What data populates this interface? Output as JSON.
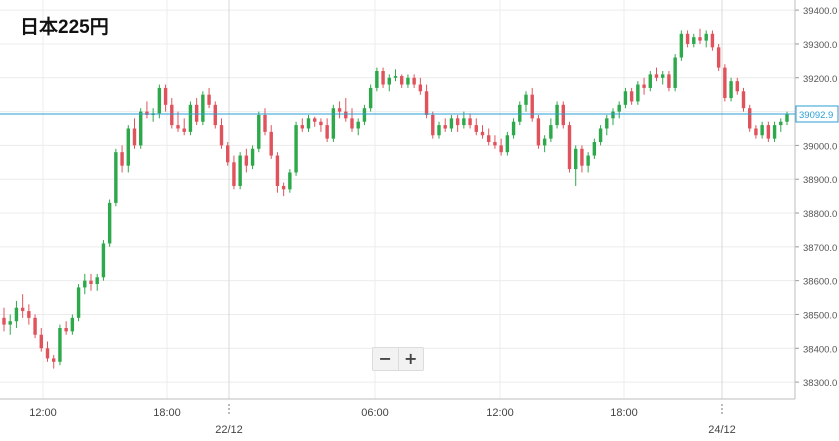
{
  "title": "日本225円",
  "zoom": {
    "minus": "−",
    "plus": "+"
  },
  "colors": {
    "up": "#2da84a",
    "down": "#e0535c",
    "price_line": "#2a9fd6",
    "grid": "#ececec"
  },
  "chart_data": {
    "type": "candlestick",
    "title": "日本225円",
    "ylim": [
      38250,
      39430
    ],
    "y_ticks": [
      "39400.0",
      "39300.0",
      "39200.0",
      "39100.0",
      "39000.0",
      "38900.0",
      "38800.0",
      "38700.0",
      "38600.0",
      "38500.0",
      "38400.0",
      "38300.0"
    ],
    "x_ticks": [
      "12:00",
      "18:00",
      "06:00",
      "12:00",
      "18:00"
    ],
    "date_labels": [
      "22/12",
      "24/12"
    ],
    "current_price": "39092.9",
    "candles": [
      [
        38490,
        38520,
        38450,
        38470
      ],
      [
        38470,
        38500,
        38440,
        38480
      ],
      [
        38480,
        38540,
        38460,
        38520
      ],
      [
        38520,
        38560,
        38490,
        38510
      ],
      [
        38510,
        38530,
        38470,
        38490
      ],
      [
        38490,
        38500,
        38430,
        38440
      ],
      [
        38440,
        38460,
        38390,
        38400
      ],
      [
        38400,
        38420,
        38360,
        38370
      ],
      [
        38370,
        38380,
        38340,
        38360
      ],
      [
        38360,
        38470,
        38350,
        38460
      ],
      [
        38460,
        38480,
        38440,
        38450
      ],
      [
        38450,
        38500,
        38440,
        38490
      ],
      [
        38490,
        38590,
        38480,
        38580
      ],
      [
        38580,
        38620,
        38560,
        38600
      ],
      [
        38600,
        38620,
        38570,
        38590
      ],
      [
        38590,
        38620,
        38570,
        38610
      ],
      [
        38610,
        38720,
        38600,
        38710
      ],
      [
        38710,
        38840,
        38700,
        38830
      ],
      [
        38830,
        38990,
        38820,
        38980
      ],
      [
        38980,
        39000,
        38920,
        38940
      ],
      [
        38940,
        39060,
        38920,
        39050
      ],
      [
        39050,
        39080,
        38990,
        39000
      ],
      [
        39000,
        39110,
        38990,
        39100
      ],
      [
        39100,
        39130,
        39080,
        39090
      ],
      [
        39090,
        39110,
        39070,
        39095
      ],
      [
        39095,
        39180,
        39080,
        39170
      ],
      [
        39170,
        39180,
        39100,
        39120
      ],
      [
        39120,
        39140,
        39050,
        39060
      ],
      [
        39060,
        39100,
        39040,
        39050
      ],
      [
        39050,
        39080,
        39030,
        39040
      ],
      [
        39040,
        39130,
        39030,
        39120
      ],
      [
        39120,
        39140,
        39060,
        39070
      ],
      [
        39070,
        39160,
        39060,
        39150
      ],
      [
        39150,
        39170,
        39110,
        39120
      ],
      [
        39120,
        39130,
        39050,
        39060
      ],
      [
        39060,
        39080,
        38990,
        39000
      ],
      [
        39000,
        39010,
        38940,
        38950
      ],
      [
        38950,
        38970,
        38870,
        38880
      ],
      [
        38880,
        38980,
        38870,
        38970
      ],
      [
        38970,
        38990,
        38920,
        38940
      ],
      [
        38940,
        39000,
        38930,
        38990
      ],
      [
        38990,
        39100,
        38980,
        39090
      ],
      [
        39090,
        39110,
        39030,
        39040
      ],
      [
        39040,
        39060,
        38960,
        38970
      ],
      [
        38970,
        38980,
        38860,
        38880
      ],
      [
        38880,
        38890,
        38850,
        38870
      ],
      [
        38870,
        38930,
        38860,
        38920
      ],
      [
        38920,
        39070,
        38910,
        39060
      ],
      [
        39060,
        39080,
        39040,
        39050
      ],
      [
        39050,
        39090,
        39040,
        39080
      ],
      [
        39080,
        39085,
        39055,
        39070
      ],
      [
        39070,
        39080,
        39040,
        39060
      ],
      [
        39060,
        39080,
        39010,
        39020
      ],
      [
        39020,
        39120,
        39010,
        39110
      ],
      [
        39110,
        39130,
        39080,
        39100
      ],
      [
        39100,
        39140,
        39070,
        39080
      ],
      [
        39080,
        39110,
        39040,
        39050
      ],
      [
        39050,
        39080,
        39030,
        39070
      ],
      [
        39070,
        39120,
        39060,
        39110
      ],
      [
        39110,
        39180,
        39100,
        39170
      ],
      [
        39170,
        39230,
        39160,
        39220
      ],
      [
        39220,
        39230,
        39170,
        39180
      ],
      [
        39180,
        39210,
        39160,
        39200
      ],
      [
        39200,
        39225,
        39190,
        39205
      ],
      [
        39205,
        39210,
        39170,
        39180
      ],
      [
        39180,
        39210,
        39170,
        39200
      ],
      [
        39200,
        39210,
        39170,
        39180
      ],
      [
        39180,
        39200,
        39150,
        39160
      ],
      [
        39160,
        39180,
        39080,
        39090
      ],
      [
        39090,
        39100,
        39020,
        39030
      ],
      [
        39030,
        39070,
        39020,
        39060
      ],
      [
        39060,
        39080,
        39040,
        39050
      ],
      [
        39050,
        39090,
        39040,
        39080
      ],
      [
        39080,
        39090,
        39040,
        39060
      ],
      [
        39060,
        39100,
        39050,
        39080
      ],
      [
        39080,
        39095,
        39050,
        39060
      ],
      [
        39060,
        39080,
        39030,
        39040
      ],
      [
        39040,
        39060,
        39020,
        39030
      ],
      [
        39030,
        39050,
        39000,
        39010
      ],
      [
        39010,
        39030,
        38990,
        39000
      ],
      [
        39000,
        39020,
        38970,
        38980
      ],
      [
        38980,
        39040,
        38970,
        39030
      ],
      [
        39030,
        39080,
        39020,
        39070
      ],
      [
        39070,
        39130,
        39060,
        39120
      ],
      [
        39120,
        39160,
        39100,
        39150
      ],
      [
        39150,
        39170,
        39070,
        39080
      ],
      [
        39080,
        39090,
        38990,
        39000
      ],
      [
        39000,
        39030,
        38980,
        39020
      ],
      [
        39020,
        39080,
        39010,
        39060
      ],
      [
        39060,
        39130,
        39050,
        39120
      ],
      [
        39120,
        39130,
        39050,
        39060
      ],
      [
        39060,
        39070,
        38920,
        38930
      ],
      [
        38930,
        39000,
        38880,
        38990
      ],
      [
        38990,
        39000,
        38920,
        38940
      ],
      [
        38940,
        38980,
        38920,
        38970
      ],
      [
        38970,
        39020,
        38960,
        39010
      ],
      [
        39010,
        39060,
        39000,
        39050
      ],
      [
        39050,
        39090,
        39030,
        39080
      ],
      [
        39080,
        39110,
        39060,
        39100
      ],
      [
        39100,
        39130,
        39080,
        39120
      ],
      [
        39120,
        39170,
        39110,
        39160
      ],
      [
        39160,
        39170,
        39120,
        39130
      ],
      [
        39130,
        39190,
        39120,
        39180
      ],
      [
        39180,
        39200,
        39150,
        39170
      ],
      [
        39170,
        39220,
        39160,
        39210
      ],
      [
        39210,
        39230,
        39190,
        39200
      ],
      [
        39200,
        39220,
        39180,
        39210
      ],
      [
        39210,
        39220,
        39160,
        39170
      ],
      [
        39170,
        39270,
        39160,
        39260
      ],
      [
        39260,
        39340,
        39250,
        39330
      ],
      [
        39330,
        39340,
        39290,
        39300
      ],
      [
        39300,
        39330,
        39290,
        39320
      ],
      [
        39320,
        39345,
        39300,
        39310
      ],
      [
        39310,
        39340,
        39290,
        39330
      ],
      [
        39330,
        39340,
        39280,
        39290
      ],
      [
        39290,
        39300,
        39220,
        39230
      ],
      [
        39230,
        39240,
        39130,
        39140
      ],
      [
        39140,
        39200,
        39130,
        39190
      ],
      [
        39190,
        39200,
        39150,
        39160
      ],
      [
        39160,
        39170,
        39100,
        39110
      ],
      [
        39110,
        39120,
        39040,
        39050
      ],
      [
        39050,
        39060,
        39020,
        39030
      ],
      [
        39030,
        39070,
        39020,
        39060
      ],
      [
        39060,
        39070,
        39010,
        39020
      ],
      [
        39020,
        39070,
        39010,
        39060
      ],
      [
        39060,
        39080,
        39040,
        39070
      ],
      [
        39070,
        39100,
        39060,
        39092.9
      ]
    ]
  }
}
